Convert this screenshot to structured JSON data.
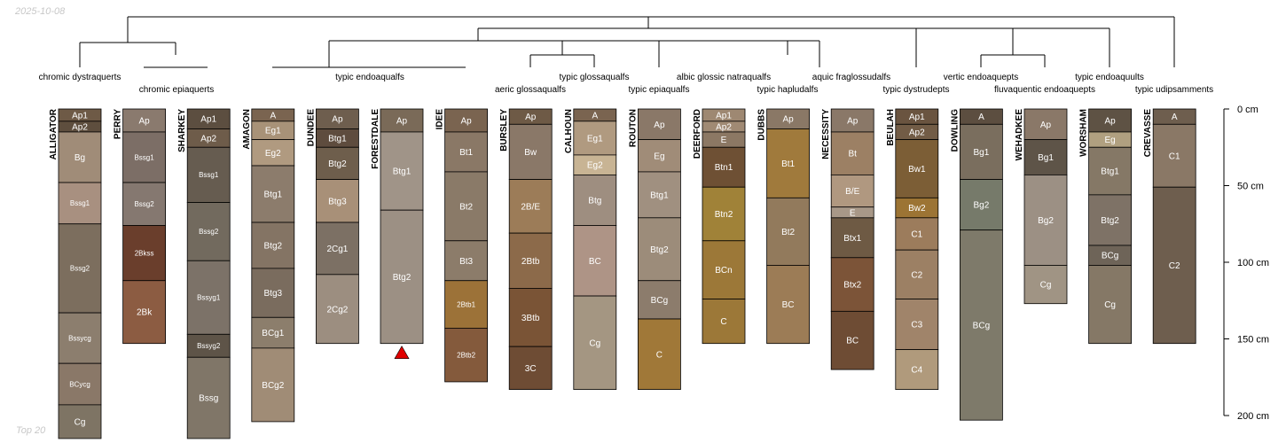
{
  "corner_date": "2025-10-08",
  "corner_note": "Top 20",
  "depth_axis": {
    "max_cm": 200,
    "ticks": [
      {
        "value": 0,
        "label": "0 cm"
      },
      {
        "value": 50,
        "label": "50 cm"
      },
      {
        "value": 100,
        "label": "100 cm"
      },
      {
        "value": 150,
        "label": "150 cm"
      },
      {
        "value": 200,
        "label": "200 cm"
      }
    ]
  },
  "profiles": [
    {
      "name": "ALLIGATOR",
      "hz": [
        [
          "Ap1",
          0,
          8,
          "#6e5a46"
        ],
        [
          "Ap2",
          8,
          15,
          "#5e4e3e"
        ],
        [
          "Bg",
          15,
          48,
          "#a08c78"
        ],
        [
          "Bssg1",
          48,
          75,
          "#a89080"
        ],
        [
          "Bssg2",
          75,
          133,
          "#7c6e5e"
        ],
        [
          "Bssycg",
          133,
          166,
          "#8c7e6e"
        ],
        [
          "BCycg",
          166,
          193,
          "#8a7868"
        ],
        [
          "Cg",
          193,
          215,
          "#7e7464"
        ]
      ]
    },
    {
      "name": "PERRY",
      "hz": [
        [
          "Ap",
          0,
          15,
          "#8a7a6e"
        ],
        [
          "Bssg1",
          15,
          48,
          "#7c6e66"
        ],
        [
          "Bssg2",
          48,
          76,
          "#857870"
        ],
        [
          "2Bkss",
          76,
          112,
          "#6a3e2c"
        ],
        [
          "2Bk",
          112,
          153,
          "#8c5c42"
        ]
      ]
    },
    {
      "name": "SHARKEY",
      "hz": [
        [
          "Ap1",
          0,
          13,
          "#5c4e40"
        ],
        [
          "Ap2",
          13,
          25,
          "#6e5c4a"
        ],
        [
          "Bssg1",
          25,
          61,
          "#665c50"
        ],
        [
          "Bssg2",
          61,
          99,
          "#726a5e"
        ],
        [
          "Bssyg1",
          99,
          147,
          "#7c7268"
        ],
        [
          "Bssyg2",
          147,
          162,
          "#5e5448"
        ],
        [
          "Bssg",
          162,
          215,
          "#807668"
        ]
      ]
    },
    {
      "name": "AMAGON",
      "hz": [
        [
          "A",
          0,
          8,
          "#7a6450"
        ],
        [
          "Eg1",
          8,
          20,
          "#a89278"
        ],
        [
          "Eg2",
          20,
          37,
          "#b09a80"
        ],
        [
          "Btg1",
          37,
          74,
          "#8c7c6c"
        ],
        [
          "Btg2",
          74,
          104,
          "#847464"
        ],
        [
          "Btg3",
          104,
          136,
          "#7a6c5e"
        ],
        [
          "BCg1",
          136,
          156,
          "#8c7e6c"
        ],
        [
          "BCg2",
          156,
          204,
          "#a08c76"
        ]
      ]
    },
    {
      "name": "DUNDEE",
      "hz": [
        [
          "Ap",
          0,
          13,
          "#6e5e4e"
        ],
        [
          "Btg1",
          13,
          25,
          "#5e4c3e"
        ],
        [
          "Btg2",
          25,
          46,
          "#6e5e4c"
        ],
        [
          "Btg3",
          46,
          74,
          "#a89078"
        ],
        [
          "2Cg1",
          74,
          108,
          "#7c7064"
        ],
        [
          "2Cg2",
          108,
          153,
          "#9c8e80"
        ]
      ]
    },
    {
      "name": "FORESTDALE",
      "hz": [
        [
          "Ap",
          0,
          15,
          "#7a6a58"
        ],
        [
          "Btg1",
          15,
          66,
          "#a09488"
        ],
        [
          "Btg2",
          66,
          153,
          "#9c9084"
        ]
      ],
      "truncated": true
    },
    {
      "name": "IDEE",
      "hz": [
        [
          "Ap",
          0,
          15,
          "#7a6450"
        ],
        [
          "Bt1",
          15,
          41,
          "#8a7866"
        ],
        [
          "Bt2",
          41,
          86,
          "#8a7a68"
        ],
        [
          "Bt3",
          86,
          112,
          "#8c7c6a"
        ],
        [
          "2Btb1",
          112,
          143,
          "#9c7238"
        ],
        [
          "2Btb2",
          143,
          178,
          "#845a3c"
        ]
      ]
    },
    {
      "name": "BURSLEY",
      "hz": [
        [
          "Ap",
          0,
          10,
          "#6e5a46"
        ],
        [
          "Bw",
          10,
          46,
          "#8a7868"
        ],
        [
          "2B/E",
          46,
          81,
          "#9c7c58"
        ],
        [
          "2Btb",
          81,
          117,
          "#8c6a4a"
        ],
        [
          "3Btb",
          117,
          155,
          "#7a5436"
        ],
        [
          "3C",
          155,
          183,
          "#6e4c34"
        ]
      ]
    },
    {
      "name": "CALHOUN",
      "hz": [
        [
          "A",
          0,
          8,
          "#7a6450"
        ],
        [
          "Eg1",
          8,
          30,
          "#b09a80"
        ],
        [
          "Eg2",
          30,
          43,
          "#c8b494"
        ],
        [
          "Btg",
          43,
          76,
          "#9e8e80"
        ],
        [
          "BC",
          76,
          122,
          "#ae9486"
        ],
        [
          "Cg",
          122,
          183,
          "#a49682"
        ]
      ]
    },
    {
      "name": "ROUTON",
      "hz": [
        [
          "Ap",
          0,
          20,
          "#8a7868"
        ],
        [
          "Eg",
          20,
          41,
          "#a08c78"
        ],
        [
          "Btg1",
          41,
          71,
          "#a09080"
        ],
        [
          "Btg2",
          71,
          112,
          "#9c8c7a"
        ],
        [
          "BCg",
          112,
          137,
          "#8c7c6c"
        ],
        [
          "C",
          137,
          183,
          "#a07838"
        ]
      ]
    },
    {
      "name": "DEERFORD",
      "hz": [
        [
          "Ap1",
          0,
          8,
          "#9e8872"
        ],
        [
          "Ap2",
          8,
          15,
          "#a08a74"
        ],
        [
          "E",
          15,
          25,
          "#8c7864"
        ],
        [
          "Btn1",
          25,
          51,
          "#6e5034"
        ],
        [
          "Btn2",
          51,
          86,
          "#a08238"
        ],
        [
          "BCn",
          86,
          124,
          "#9c7838"
        ],
        [
          "C",
          124,
          153,
          "#9c7838"
        ]
      ]
    },
    {
      "name": "DUBBS",
      "hz": [
        [
          "Ap",
          0,
          13,
          "#8a7866"
        ],
        [
          "Bt1",
          13,
          58,
          "#a07a3c"
        ],
        [
          "Bt2",
          58,
          102,
          "#927a5c"
        ],
        [
          "BC",
          102,
          153,
          "#9c7c56"
        ]
      ]
    },
    {
      "name": "NECESSITY",
      "hz": [
        [
          "Ap",
          0,
          15,
          "#8a7868"
        ],
        [
          "Bt",
          15,
          43,
          "#9c8064"
        ],
        [
          "B/E",
          43,
          64,
          "#b09880"
        ],
        [
          "E",
          64,
          71,
          "#a89888"
        ],
        [
          "Btx1",
          71,
          97,
          "#6e5a44"
        ],
        [
          "Btx2",
          97,
          132,
          "#7c5438"
        ],
        [
          "BC",
          132,
          170,
          "#6e4c34"
        ]
      ]
    },
    {
      "name": "BEULAH",
      "hz": [
        [
          "Ap1",
          0,
          10,
          "#6a5440"
        ],
        [
          "Ap2",
          10,
          20,
          "#725c46"
        ],
        [
          "Bw1",
          20,
          58,
          "#7c5e36"
        ],
        [
          "Bw2",
          58,
          71,
          "#9c7434"
        ],
        [
          "C1",
          71,
          92,
          "#9c7c5c"
        ],
        [
          "C2",
          92,
          124,
          "#9c8064"
        ],
        [
          "C3",
          124,
          157,
          "#a0846a"
        ],
        [
          "C4",
          157,
          183,
          "#b09a7c"
        ]
      ]
    },
    {
      "name": "DOWLING",
      "hz": [
        [
          "A",
          0,
          10,
          "#5c4e40"
        ],
        [
          "Bg1",
          10,
          46,
          "#7a6e5e"
        ],
        [
          "Bg2",
          46,
          79,
          "#767a6a"
        ],
        [
          "BCg",
          79,
          203,
          "#7e7a6a"
        ]
      ]
    },
    {
      "name": "WEHADKEE",
      "hz": [
        [
          "Ap",
          0,
          20,
          "#8a7868"
        ],
        [
          "Bg1",
          20,
          43,
          "#5e5448"
        ],
        [
          "Bg2",
          43,
          102,
          "#9c9084"
        ],
        [
          "Cg",
          102,
          127,
          "#a09484"
        ]
      ]
    },
    {
      "name": "WORSHAM",
      "hz": [
        [
          "Ap",
          0,
          15,
          "#5e5244"
        ],
        [
          "Eg",
          15,
          25,
          "#b0a080"
        ],
        [
          "Btg1",
          25,
          56,
          "#857866"
        ],
        [
          "Btg2",
          56,
          89,
          "#7e7266"
        ],
        [
          "BCg",
          89,
          102,
          "#6e6458"
        ],
        [
          "Cg",
          102,
          153,
          "#857866"
        ]
      ]
    },
    {
      "name": "CREVASSE",
      "hz": [
        [
          "A",
          0,
          10,
          "#6e5e4e"
        ],
        [
          "C1",
          10,
          51,
          "#8a7866"
        ],
        [
          "C2",
          51,
          153,
          "#6e5e4e"
        ]
      ]
    }
  ],
  "taxa": [
    {
      "label": "chromic dystraquerts"
    },
    {
      "label": "chromic epiaquerts"
    },
    {
      "label": "typic endoaqualfs"
    },
    {
      "label": "aeric glossaqualfs"
    },
    {
      "label": "typic glossaqualfs"
    },
    {
      "label": "typic epiaqualfs"
    },
    {
      "label": "albic glossic natraqualfs"
    },
    {
      "label": "typic hapludalfs"
    },
    {
      "label": "aquic fraglossudalfs"
    },
    {
      "label": "typic dystrudepts"
    },
    {
      "label": "vertic endoaquepts"
    },
    {
      "label": "fluvaquentic endoaquepts"
    },
    {
      "label": "typic endoaquults"
    },
    {
      "label": "typic udipsamments"
    }
  ]
}
